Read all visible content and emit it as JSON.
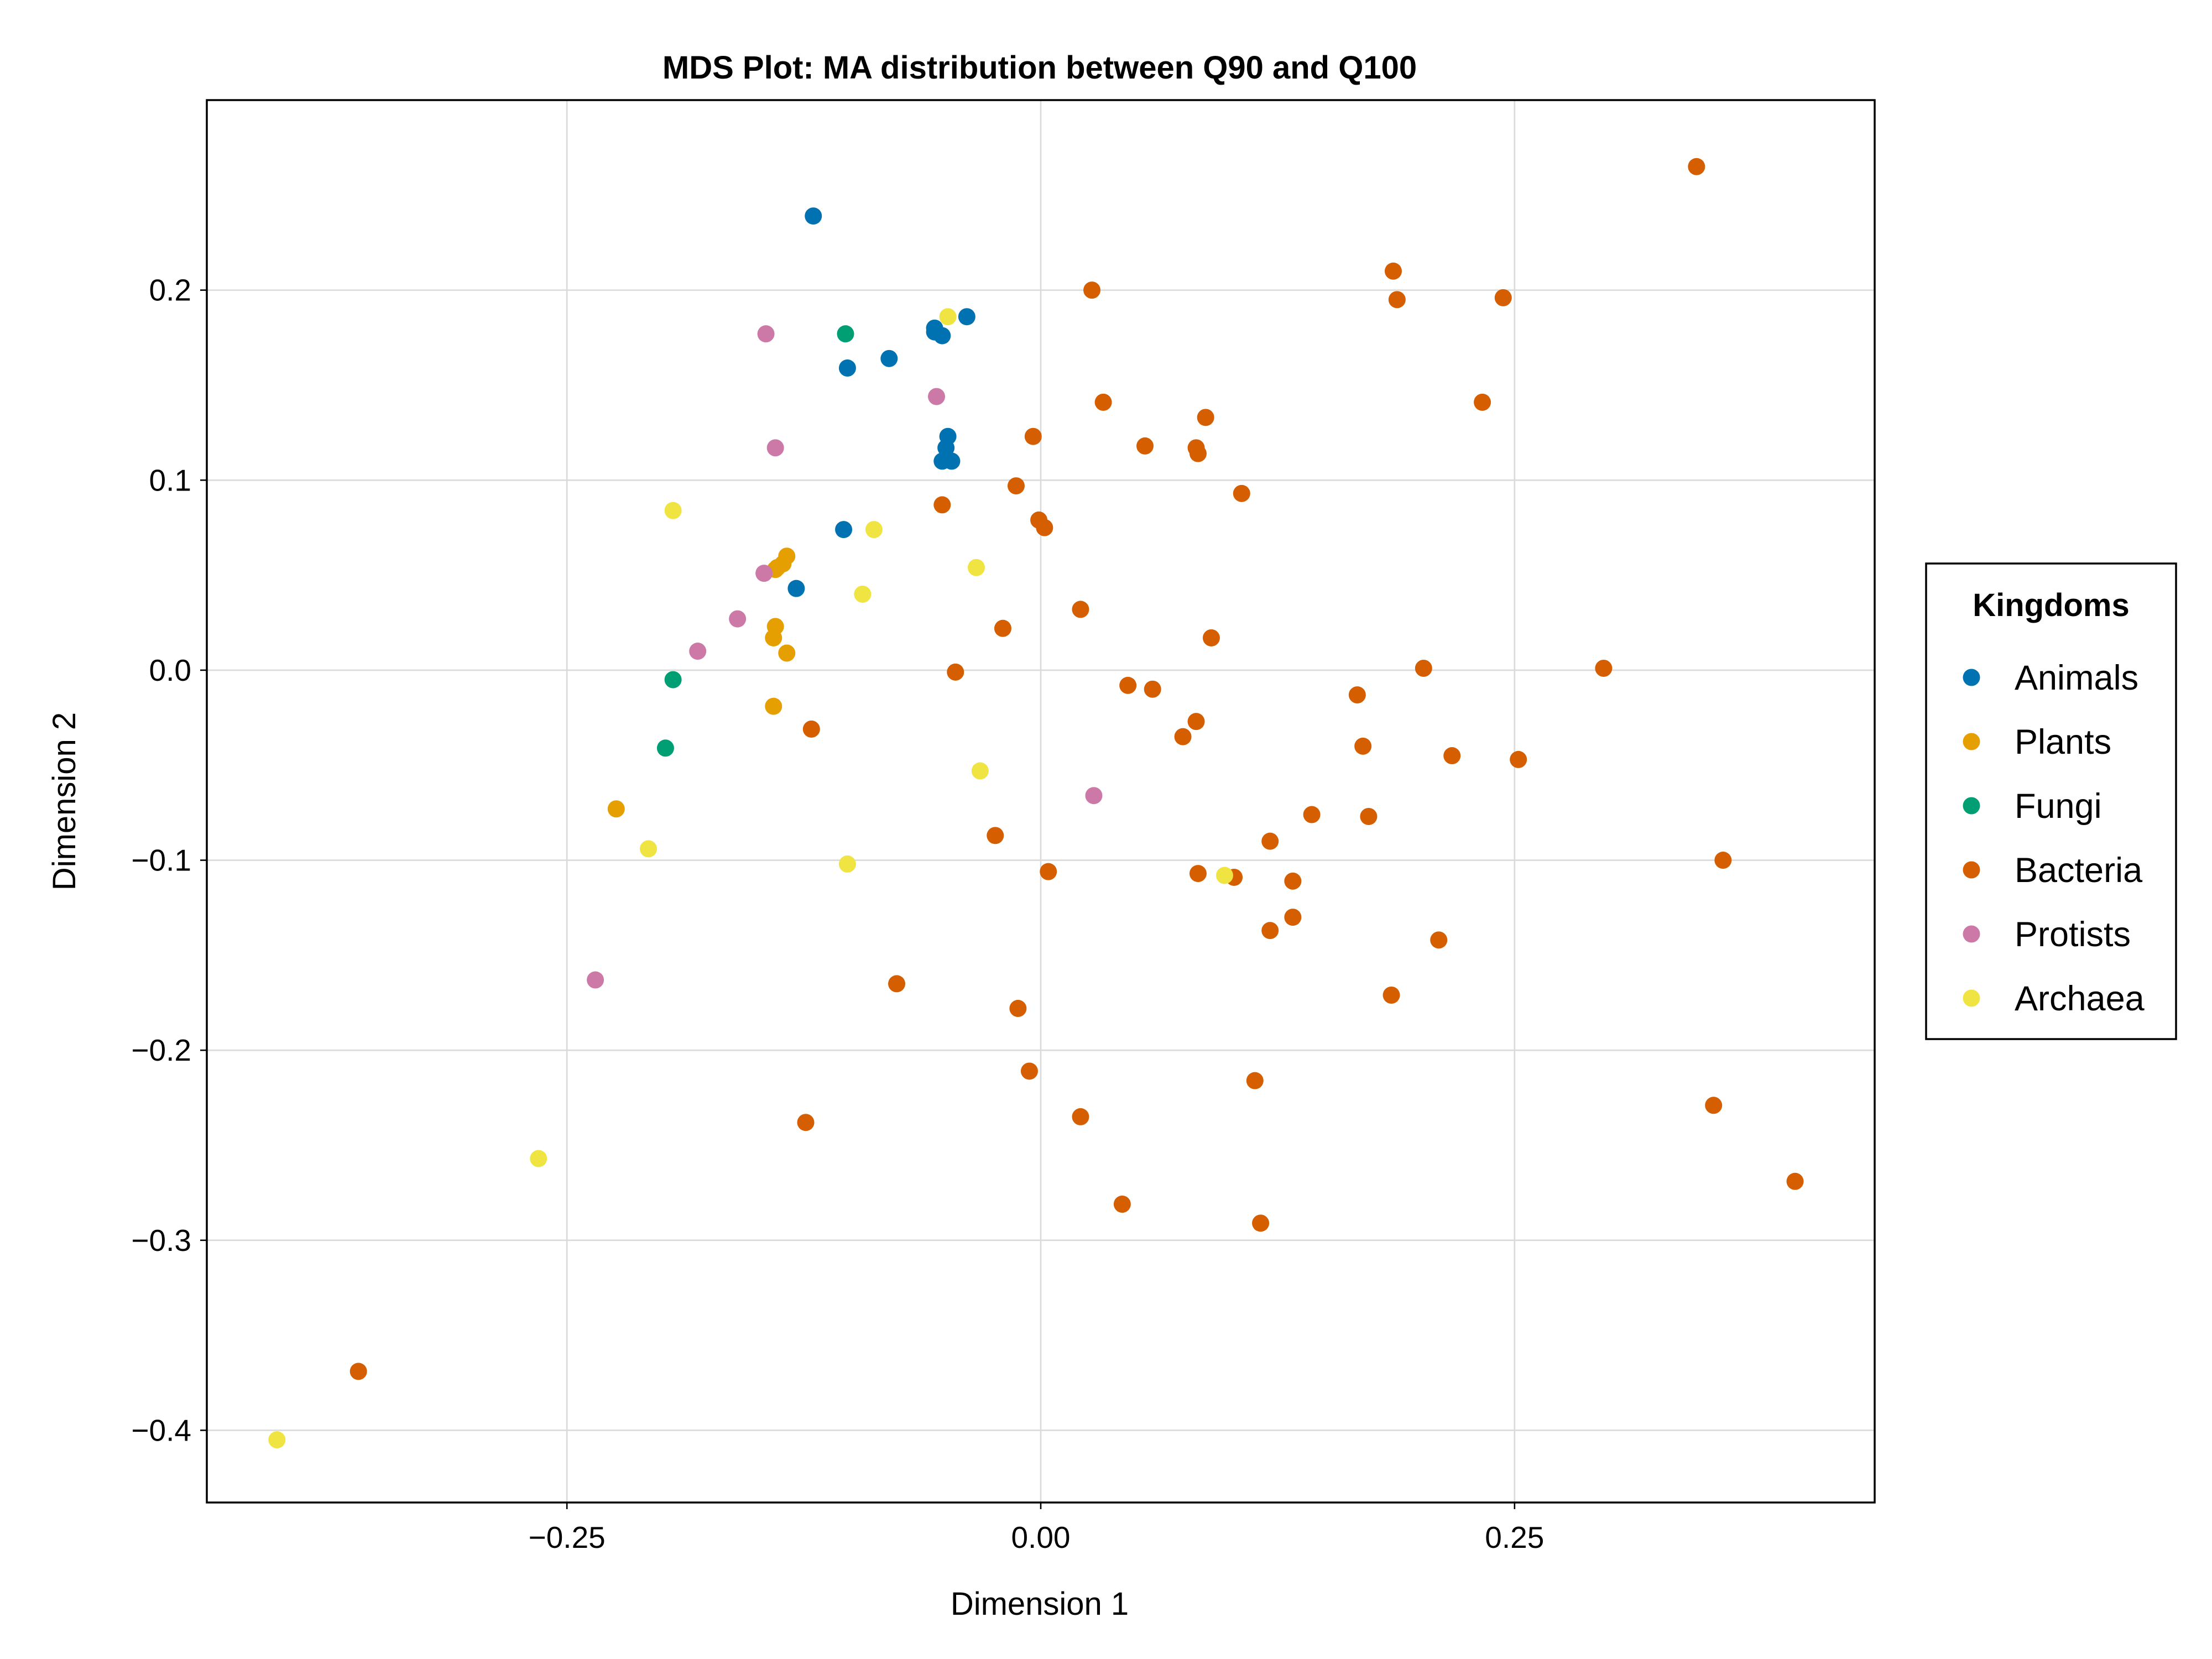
{
  "chart_data": {
    "type": "scatter",
    "title": "MDS Plot: MA distribution between Q90 and Q100",
    "xlabel": "Dimension 1",
    "ylabel": "Dimension 2",
    "xlim": [
      -0.44,
      0.44
    ],
    "ylim": [
      -0.438,
      0.3
    ],
    "x_ticks": [
      -0.25,
      0,
      0.25
    ],
    "x_tick_labels": [
      "−0.25",
      "0.00",
      "0.25"
    ],
    "y_ticks": [
      -0.4,
      -0.3,
      -0.2,
      -0.1,
      0,
      0.1,
      0.2
    ],
    "y_tick_labels": [
      "−0.4",
      "−0.3",
      "−0.2",
      "−0.1",
      "0.0",
      "0.1",
      "0.2"
    ],
    "grid": true,
    "legend": {
      "title": "Kingdoms",
      "placement": "right"
    },
    "series": [
      {
        "name": "Animals",
        "color": "#0072b2",
        "points": [
          [
            -0.12,
            0.239
          ],
          [
            -0.08,
            0.164
          ],
          [
            -0.102,
            0.159
          ],
          [
            -0.056,
            0.18
          ],
          [
            -0.052,
            0.176
          ],
          [
            -0.056,
            0.178
          ],
          [
            -0.039,
            0.186
          ],
          [
            -0.049,
            0.123
          ],
          [
            -0.05,
            0.117
          ],
          [
            -0.052,
            0.11
          ],
          [
            -0.047,
            0.11
          ],
          [
            -0.104,
            0.074
          ],
          [
            -0.129,
            0.043
          ]
        ]
      },
      {
        "name": "Plants",
        "color": "#e69f00",
        "points": [
          [
            -0.134,
            0.06
          ],
          [
            -0.136,
            0.056
          ],
          [
            -0.139,
            0.054
          ],
          [
            -0.14,
            0.053
          ],
          [
            -0.14,
            0.023
          ],
          [
            -0.141,
            0.017
          ],
          [
            -0.134,
            0.009
          ],
          [
            -0.141,
            -0.019
          ],
          [
            -0.224,
            -0.073
          ]
        ]
      },
      {
        "name": "Fungi",
        "color": "#009e73",
        "points": [
          [
            -0.103,
            0.177
          ],
          [
            -0.194,
            -0.005
          ],
          [
            -0.198,
            -0.041
          ]
        ]
      },
      {
        "name": "Bacteria",
        "color": "#d55e00",
        "points": [
          [
            0.346,
            0.265
          ],
          [
            0.186,
            0.21
          ],
          [
            0.188,
            0.195
          ],
          [
            0.244,
            0.196
          ],
          [
            0.027,
            0.2
          ],
          [
            0.033,
            0.141
          ],
          [
            0.233,
            0.141
          ],
          [
            0.087,
            0.133
          ],
          [
            0.055,
            0.118
          ],
          [
            0.082,
            0.117
          ],
          [
            0.083,
            0.114
          ],
          [
            -0.004,
            0.123
          ],
          [
            -0.013,
            0.097
          ],
          [
            -0.001,
            0.079
          ],
          [
            0.002,
            0.075
          ],
          [
            0.106,
            0.093
          ],
          [
            -0.052,
            0.087
          ],
          [
            0.021,
            0.032
          ],
          [
            -0.02,
            0.022
          ],
          [
            0.09,
            0.017
          ],
          [
            -0.045,
            -0.001
          ],
          [
            0.202,
            0.001
          ],
          [
            0.297,
            0.001
          ],
          [
            0.046,
            -0.008
          ],
          [
            0.059,
            -0.01
          ],
          [
            0.167,
            -0.013
          ],
          [
            0.082,
            -0.027
          ],
          [
            0.075,
            -0.035
          ],
          [
            0.17,
            -0.04
          ],
          [
            0.217,
            -0.045
          ],
          [
            0.252,
            -0.047
          ],
          [
            -0.121,
            -0.031
          ],
          [
            0.143,
            -0.076
          ],
          [
            0.173,
            -0.077
          ],
          [
            0.121,
            -0.09
          ],
          [
            -0.024,
            -0.087
          ],
          [
            0.36,
            -0.1
          ],
          [
            0.004,
            -0.106
          ],
          [
            0.083,
            -0.107
          ],
          [
            0.102,
            -0.109
          ],
          [
            0.133,
            -0.111
          ],
          [
            0.133,
            -0.13
          ],
          [
            0.121,
            -0.137
          ],
          [
            0.21,
            -0.142
          ],
          [
            0.185,
            -0.171
          ],
          [
            -0.076,
            -0.165
          ],
          [
            -0.012,
            -0.178
          ],
          [
            -0.006,
            -0.211
          ],
          [
            0.021,
            -0.235
          ],
          [
            0.113,
            -0.216
          ],
          [
            -0.124,
            -0.238
          ],
          [
            0.355,
            -0.229
          ],
          [
            0.043,
            -0.281
          ],
          [
            0.116,
            -0.291
          ],
          [
            0.398,
            -0.269
          ],
          [
            -0.36,
            -0.369
          ]
        ]
      },
      {
        "name": "Protists",
        "color": "#cc79a7",
        "points": [
          [
            -0.145,
            0.177
          ],
          [
            -0.14,
            0.117
          ],
          [
            -0.055,
            0.144
          ],
          [
            -0.146,
            0.051
          ],
          [
            -0.16,
            0.027
          ],
          [
            -0.181,
            0.01
          ],
          [
            0.028,
            -0.066
          ],
          [
            -0.235,
            -0.163
          ]
        ]
      },
      {
        "name": "Archaea",
        "color": "#f0e442",
        "points": [
          [
            -0.049,
            0.186
          ],
          [
            -0.194,
            0.084
          ],
          [
            -0.088,
            0.074
          ],
          [
            -0.094,
            0.04
          ],
          [
            -0.034,
            0.054
          ],
          [
            -0.032,
            -0.053
          ],
          [
            -0.207,
            -0.094
          ],
          [
            -0.102,
            -0.102
          ],
          [
            0.097,
            -0.108
          ],
          [
            -0.265,
            -0.257
          ],
          [
            -0.403,
            -0.405
          ]
        ]
      }
    ]
  }
}
